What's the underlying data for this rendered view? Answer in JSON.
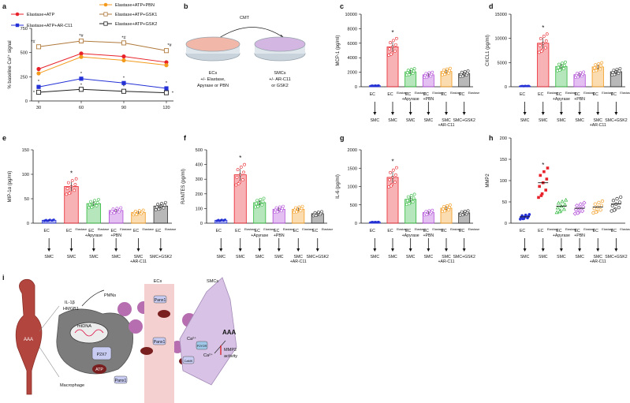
{
  "panel_labels": [
    "a",
    "b",
    "c",
    "d",
    "e",
    "f",
    "g",
    "h",
    "i"
  ],
  "colors": {
    "elastase_atp": "#e8222a",
    "elastase_atp_ar": "#2431d6",
    "elastase_atp_pbn": "#f39a1c",
    "elastase_atp_gsk1": "#b07a3c",
    "elastase_atp_gsk2": "#222222",
    "ec_bar": "#2431d6",
    "ec_el_bar": "#e8222a",
    "apyrase_bar": "#2fb83c",
    "pbn_bar": "#b04ad8",
    "ar_bar": "#f39a1c",
    "gsk_bar": "#333333"
  },
  "groups": {
    "top_labels": [
      "EC",
      "EC",
      "EC",
      "EC",
      "EC",
      "EC"
    ],
    "sup": "Elastase",
    "sub_labels": [
      "",
      "",
      "+Apyrase",
      "+PBN",
      "",
      ""
    ],
    "bottom_labels": [
      "SMC",
      "SMC",
      "SMC",
      "SMC",
      "SMC\n+AR-C11",
      "SMC+GSK2"
    ]
  },
  "panel_b": {
    "title": "CMT",
    "left": [
      "ECs",
      "+/- Elastase,",
      "Apyrase or PBN"
    ],
    "right": [
      "SMCs",
      "+/- AR-C11",
      "or GSK2"
    ]
  },
  "chart_data": [
    {
      "panel": "a",
      "type": "line",
      "title": "",
      "xlabel": "",
      "ylabel": "% baseline Ca²⁺ signal",
      "x": [
        30,
        60,
        90,
        120
      ],
      "ylim": [
        0,
        750
      ],
      "yticks": [
        0,
        250,
        500,
        750
      ],
      "series": [
        {
          "name": "Elastase+ATP",
          "values": [
            330,
            490,
            460,
            400
          ],
          "marker": "circle",
          "color": "#e8222a"
        },
        {
          "name": "Elastase+ATP+AR-C11",
          "values": [
            145,
            230,
            185,
            130
          ],
          "marker": "square",
          "color": "#2431d6"
        },
        {
          "name": "Elastase+ATP+PBN",
          "values": [
            285,
            455,
            420,
            370
          ],
          "marker": "circle",
          "color": "#f39a1c"
        },
        {
          "name": "Elastase+ATP+GSK1",
          "values": [
            560,
            620,
            600,
            520
          ],
          "marker": "square-open",
          "color": "#b07a3c"
        },
        {
          "name": "Elastase+ATP+GSK2",
          "values": [
            90,
            120,
            100,
            85
          ],
          "marker": "square-open",
          "color": "#222222"
        }
      ],
      "annotations": [
        "*#",
        "*#",
        "*#",
        "*#",
        "*",
        "*",
        "*",
        "*",
        "*",
        "*",
        "*",
        "*"
      ]
    },
    {
      "panel": "c",
      "type": "bar",
      "ylabel": "MCP-1 (pg/ml)",
      "ylim": [
        0,
        10000
      ],
      "yticks": [
        0,
        2000,
        4000,
        6000,
        8000,
        10000
      ],
      "values": [
        150,
        5500,
        2050,
        1650,
        2100,
        1800
      ],
      "significant": [
        false,
        true,
        false,
        false,
        false,
        false
      ]
    },
    {
      "panel": "d",
      "type": "bar",
      "ylabel": "CXCL1 (pg/ml)",
      "ylim": [
        0,
        15000
      ],
      "yticks": [
        0,
        5000,
        10000,
        15000
      ],
      "values": [
        150,
        9000,
        4200,
        2500,
        4100,
        3100
      ],
      "significant": [
        false,
        true,
        false,
        false,
        false,
        false
      ]
    },
    {
      "panel": "e",
      "type": "bar",
      "ylabel": "MIP-1α (pg/ml)",
      "ylim": [
        0,
        150
      ],
      "yticks": [
        0,
        50,
        100,
        150
      ],
      "values": [
        6,
        75,
        40,
        26,
        22,
        35
      ],
      "significant": [
        false,
        true,
        false,
        false,
        false,
        false
      ]
    },
    {
      "panel": "f",
      "type": "bar",
      "ylabel": "RANTES (pg/ml)",
      "ylim": [
        0,
        500
      ],
      "yticks": [
        0,
        100,
        200,
        300,
        400,
        500
      ],
      "values": [
        20,
        330,
        140,
        95,
        95,
        65
      ],
      "significant": [
        false,
        true,
        false,
        false,
        false,
        false
      ]
    },
    {
      "panel": "g",
      "type": "bar",
      "ylabel": "IL-6 (pg/ml)",
      "ylim": [
        0,
        2000
      ],
      "yticks": [
        0,
        500,
        1000,
        1500,
        2000
      ],
      "values": [
        30,
        1250,
        650,
        290,
        410,
        280
      ],
      "significant": [
        false,
        true,
        false,
        false,
        false,
        false
      ]
    },
    {
      "panel": "h",
      "type": "scatter",
      "ylabel": "MMP2",
      "ylim": [
        0,
        200
      ],
      "yticks": [
        0,
        50,
        100,
        150,
        200
      ],
      "values": [
        15,
        95,
        40,
        35,
        38,
        45
      ],
      "significant": [
        false,
        true,
        false,
        false,
        false,
        false
      ]
    }
  ],
  "panel_i": {
    "aaa_left": "AAA",
    "pmns": "PMNs",
    "il1b": "IL-1β",
    "hmgb1": "HMGB1",
    "mtdna": "mtDNA",
    "p2x7": "P2X7",
    "atp": "ATP",
    "macrophage": "Macrophage",
    "panx1": "Panx1",
    "ecs": "ECs",
    "smcs": "SMCs",
    "ca": "Ca²⁺",
    "aaa_right": "AAA",
    "mmp2": "MMP2",
    "activity": "activity",
    "p2y2": "P2Y2R",
    "camk": "CaMK"
  }
}
